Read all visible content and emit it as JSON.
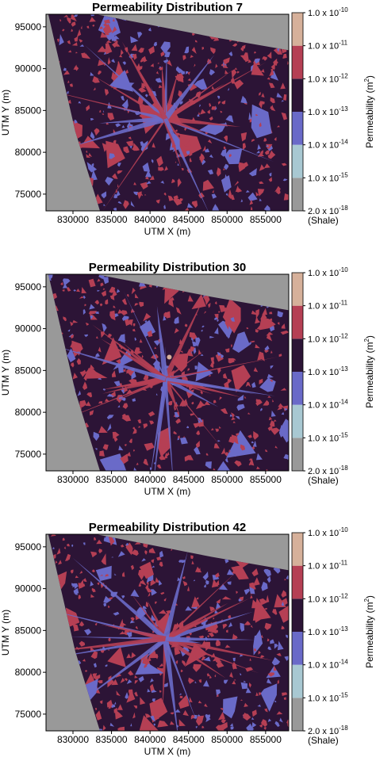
{
  "chart_data": [
    {
      "type": "heatmap",
      "title": "Permeability Distribution 7",
      "xlabel": "UTM X (m)",
      "ylabel": "UTM Y (m)",
      "xlim": [
        826500,
        858000
      ],
      "ylim": [
        73000,
        96500
      ],
      "xticks": [
        830000,
        835000,
        840000,
        845000,
        850000,
        855000
      ],
      "yticks": [
        75000,
        80000,
        85000,
        90000,
        95000
      ],
      "seed": 7
    },
    {
      "type": "heatmap",
      "title": "Permeability Distribution 30",
      "xlabel": "UTM X (m)",
      "ylabel": "UTM Y (m)",
      "xlim": [
        826500,
        858000
      ],
      "ylim": [
        73000,
        96500
      ],
      "xticks": [
        830000,
        835000,
        840000,
        845000,
        850000,
        855000
      ],
      "yticks": [
        75000,
        80000,
        85000,
        90000,
        95000
      ],
      "seed": 30
    },
    {
      "type": "heatmap",
      "title": "Permeability Distribution 42",
      "xlabel": "UTM X (m)",
      "ylabel": "UTM Y (m)",
      "xlim": [
        826500,
        858000
      ],
      "ylim": [
        73000,
        96500
      ],
      "xticks": [
        830000,
        835000,
        840000,
        845000,
        850000,
        855000
      ],
      "yticks": [
        75000,
        80000,
        85000,
        90000,
        95000
      ],
      "seed": 42
    }
  ],
  "colorbar": {
    "label": "Permeability (m²)",
    "label_main": "Permeability (m",
    "label_sup": "2",
    "label_end": ")",
    "bands": [
      {
        "name": "shale",
        "color": "#999999"
      },
      {
        "name": "1e-15",
        "color": "#a8c8d2"
      },
      {
        "name": "1e-14",
        "color": "#6a6ac8"
      },
      {
        "name": "1e-13",
        "color": "#2c1436"
      },
      {
        "name": "1e-12",
        "color": "#b53f54"
      },
      {
        "name": "1e-11",
        "color": "#d6b09a"
      }
    ],
    "ticks": [
      {
        "base": "1.0 x 10",
        "exp": "-10"
      },
      {
        "base": "1.0 x 10",
        "exp": "-11"
      },
      {
        "base": "1.0 x 10",
        "exp": "-12"
      },
      {
        "base": "1.0 x 10",
        "exp": "-13"
      },
      {
        "base": "1.0 x 10",
        "exp": "-14"
      },
      {
        "base": "1.0 x 10",
        "exp": "-15"
      },
      {
        "base": "2.0 x 10",
        "exp": "-18"
      }
    ],
    "shale_label": "(Shale)"
  },
  "colors": {
    "background": "#999999",
    "matrix": "#2c1436",
    "high_perm": "#b53f54",
    "low_perm": "#6a6ac8",
    "hot_spot": "#d6b09a"
  }
}
